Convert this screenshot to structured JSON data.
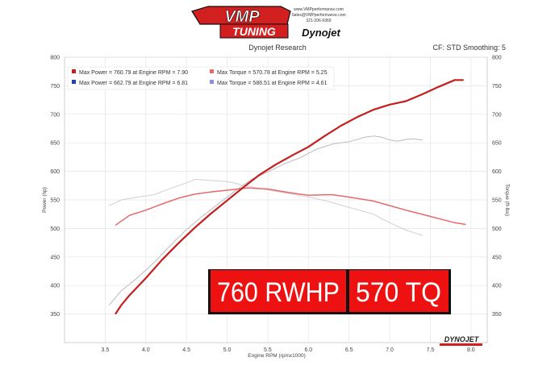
{
  "header": {
    "brand_top": "VMP",
    "brand_bottom": "TUNING",
    "brand_dynojet": "Dynojet",
    "site_lines": [
      "www.VMPperformance.com",
      "Sales@VMPperformance.com",
      "321-206-9369"
    ],
    "center_title": "Dynojet Research",
    "cf_text": "CF: STD Smoothing: 5"
  },
  "overlay": {
    "left_text": "760 RWHP",
    "right_text": "570 TQ"
  },
  "footer_logo": "DYNOJET",
  "colors": {
    "red": "#c41e1e",
    "red_light": "#e66a6a",
    "gray": "#bcbcbc",
    "gray_light": "#d0d0d0",
    "overlay_red": "#ee1111"
  },
  "chart_data": {
    "type": "line",
    "xlabel": "Engine RPM (rpmx1000)",
    "ylabel": "Power (hp)",
    "y2label": "Torque (ft-lbs)",
    "xlim": [
      3.0,
      8.2
    ],
    "ylim": [
      300,
      800
    ],
    "y2lim": [
      300,
      800
    ],
    "x_ticks": [
      "3.5",
      "4.0",
      "4.5",
      "5.0",
      "5.5",
      "6.0",
      "6.5",
      "7.0",
      "7.5",
      "8.0"
    ],
    "y_ticks": [
      "350",
      "400",
      "450",
      "500",
      "550",
      "600",
      "650",
      "700",
      "750",
      "800"
    ],
    "y2_ticks": [
      "350",
      "400",
      "450",
      "500",
      "550",
      "600",
      "650",
      "700",
      "750",
      "800"
    ],
    "grid": true,
    "legend": [
      {
        "label": "Max Power = 760.79 at Engine RPM = 7.90",
        "color": "#c41e1e"
      },
      {
        "label": "Max Torque = 570.78 at Engine RPM = 5.25",
        "color": "#e66a6a"
      },
      {
        "label": "Max Power = 662.79 at Engine RPM = 6.81",
        "color": "#1f3fbf"
      },
      {
        "label": "Max Torque = 586.51 at Engine RPM = 4.61",
        "color": "#8a8fe0"
      }
    ],
    "series": [
      {
        "name": "Power",
        "axis": "left",
        "color": "#c41e1e",
        "width": 2.2,
        "x": [
          3.63,
          3.7,
          3.8,
          3.9,
          4.0,
          4.2,
          4.4,
          4.6,
          4.8,
          5.0,
          5.2,
          5.4,
          5.6,
          5.8,
          6.0,
          6.2,
          6.4,
          6.6,
          6.8,
          7.0,
          7.2,
          7.4,
          7.6,
          7.8,
          7.9
        ],
        "y": [
          351,
          366,
          383,
          398,
          413,
          445,
          474,
          501,
          526,
          549,
          572,
          594,
          612,
          628,
          643,
          662,
          680,
          695,
          708,
          717,
          723,
          735,
          748,
          760,
          760
        ]
      },
      {
        "name": "Torque",
        "axis": "right",
        "color": "#e66a6a",
        "width": 1.5,
        "x": [
          3.63,
          3.8,
          4.0,
          4.2,
          4.4,
          4.6,
          4.8,
          5.0,
          5.25,
          5.5,
          5.8,
          6.0,
          6.2,
          6.3,
          6.5,
          6.8,
          7.0,
          7.2,
          7.5,
          7.8,
          7.93
        ],
        "y": [
          506,
          523,
          532,
          543,
          553,
          560,
          564,
          567,
          571,
          569,
          562,
          558,
          559,
          559,
          555,
          548,
          540,
          532,
          521,
          510,
          507
        ]
      },
      {
        "name": "Power (baseline)",
        "axis": "left",
        "color": "#bcbcbc",
        "width": 1.0,
        "x": [
          3.55,
          3.7,
          3.9,
          4.1,
          4.3,
          4.5,
          4.7,
          4.9,
          5.1,
          5.3,
          5.5,
          5.7,
          5.9,
          6.1,
          6.3,
          6.5,
          6.7,
          6.81,
          6.9,
          7.0,
          7.1,
          7.2,
          7.3,
          7.4
        ],
        "y": [
          366,
          391,
          414,
          440,
          470,
          498,
          522,
          544,
          566,
          586,
          599,
          613,
          624,
          639,
          648,
          652,
          660,
          662,
          660,
          655,
          653,
          656,
          657,
          655
        ]
      },
      {
        "name": "Torque (baseline)",
        "axis": "right",
        "color": "#d0d0d0",
        "width": 1.0,
        "x": [
          3.55,
          3.7,
          3.9,
          4.1,
          4.3,
          4.5,
          4.61,
          4.8,
          5.0,
          5.2,
          5.4,
          5.6,
          5.8,
          6.0,
          6.2,
          6.4,
          6.6,
          6.8,
          7.0,
          7.2,
          7.4
        ],
        "y": [
          540,
          550,
          555,
          559,
          570,
          580,
          586,
          584,
          582,
          576,
          570,
          565,
          560,
          555,
          549,
          541,
          533,
          525,
          510,
          497,
          488
        ]
      }
    ]
  }
}
